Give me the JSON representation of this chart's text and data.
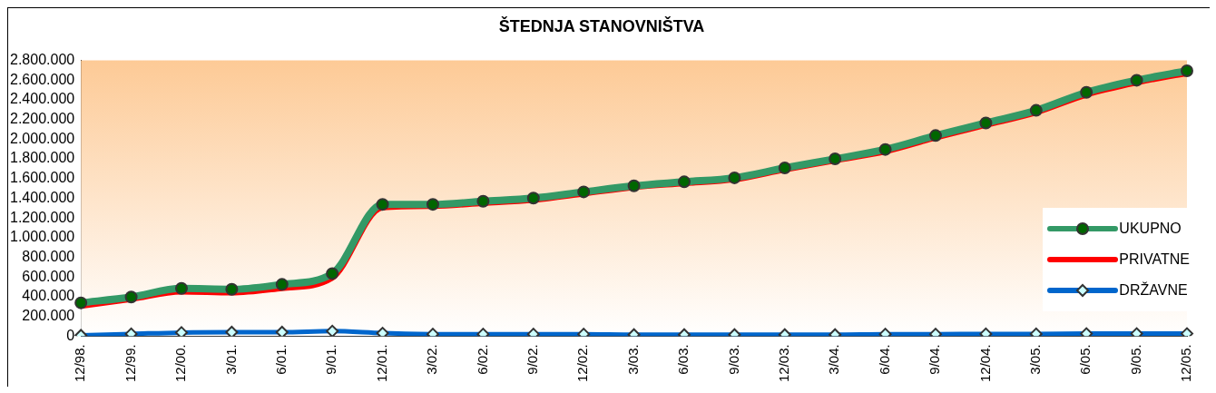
{
  "chart_data": {
    "type": "line",
    "title": "ŠTEDNJA STANOVNIŠTVA",
    "categories": [
      "12/98.",
      "12/99.",
      "12/00.",
      "3/01.",
      "6/01.",
      "9/01.",
      "12/01.",
      "3/02.",
      "6/02.",
      "9/02.",
      "12/02.",
      "3/03.",
      "6/03.",
      "9/03.",
      "12/03.",
      "3/04.",
      "6/04.",
      "9/04.",
      "12/04.",
      "3/05.",
      "6/05.",
      "9/05.",
      "12/05."
    ],
    "series": [
      {
        "name": "UKUPNO",
        "color": "#339966",
        "marker": "circle",
        "values": [
          338000,
          397000,
          484000,
          475000,
          525000,
          635000,
          1338000,
          1338000,
          1370000,
          1402000,
          1465000,
          1526000,
          1567000,
          1608000,
          1708000,
          1800000,
          1896000,
          2037000,
          2165000,
          2293000,
          2476000,
          2599000,
          2695000
        ]
      },
      {
        "name": "PRIVATNE",
        "color": "#ff0000",
        "marker": "none",
        "values": [
          300000,
          370000,
          445000,
          435000,
          480000,
          585000,
          1300000,
          1315000,
          1345000,
          1377000,
          1440000,
          1506000,
          1545000,
          1585000,
          1685000,
          1778000,
          1870000,
          2010000,
          2138000,
          2266000,
          2446000,
          2569000,
          2665000
        ]
      },
      {
        "name": "DRŽAVNE",
        "color": "#0066cc",
        "marker": "diamond",
        "values": [
          8000,
          22000,
          36000,
          40000,
          40000,
          50000,
          30000,
          20000,
          20000,
          20000,
          20000,
          15000,
          15000,
          15000,
          15000,
          15000,
          20000,
          20000,
          22000,
          22000,
          25000,
          25000,
          25000
        ]
      }
    ],
    "ylim": [
      0,
      2800000
    ],
    "yticks": [
      {
        "value": 0,
        "label": "0"
      },
      {
        "value": 200000,
        "label": "200.000"
      },
      {
        "value": 400000,
        "label": "400.000"
      },
      {
        "value": 600000,
        "label": "600.000"
      },
      {
        "value": 800000,
        "label": "800.000"
      },
      {
        "value": 1000000,
        "label": "1.000.000"
      },
      {
        "value": 1200000,
        "label": "1.200.000"
      },
      {
        "value": 1400000,
        "label": "1.400.000"
      },
      {
        "value": 1600000,
        "label": "1.600.000"
      },
      {
        "value": 1800000,
        "label": "1.800.000"
      },
      {
        "value": 2000000,
        "label": "2.000.000"
      },
      {
        "value": 2200000,
        "label": "2.200.000"
      },
      {
        "value": 2400000,
        "label": "2.400.000"
      },
      {
        "value": 2600000,
        "label": "2.600.000"
      },
      {
        "value": 2800000,
        "label": "2.800.000"
      }
    ],
    "grid": false,
    "legend": "right"
  }
}
